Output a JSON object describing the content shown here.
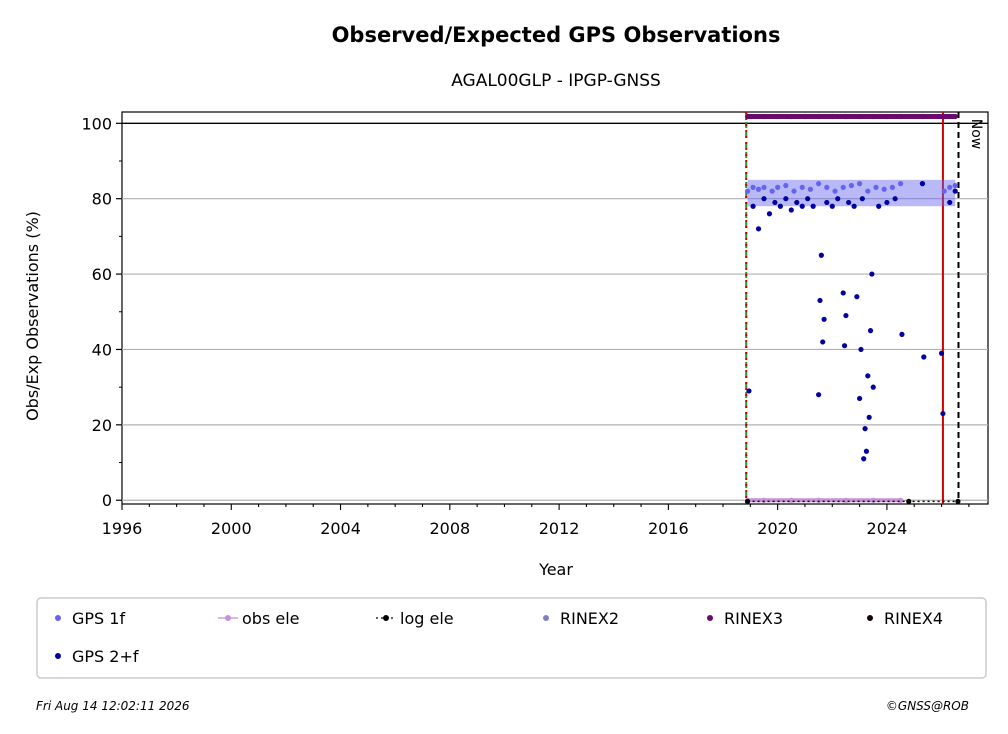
{
  "chart_data": {
    "type": "scatter",
    "title": "Observed/Expected GPS Observations",
    "subtitle": "AGAL00GLP - IPGP-GNSS",
    "xlabel": "Year",
    "ylabel": "Obs/Exp Observations (%)",
    "xlim": [
      1996,
      2027.7
    ],
    "ylim": [
      -1,
      103
    ],
    "x_ticks": [
      1996,
      2000,
      2004,
      2008,
      2012,
      2016,
      2020,
      2024
    ],
    "y_ticks": [
      0,
      20,
      40,
      60,
      80,
      100
    ],
    "grid": "horizontal",
    "legend_placement": "bottom",
    "now_label": "Now",
    "vlines": [
      {
        "name": "station-start",
        "x": 2018.85,
        "color": "#2e8b2e",
        "style": "dashed"
      },
      {
        "name": "start-red",
        "x": 2018.85,
        "color": "#cc0000",
        "style": "dotted"
      },
      {
        "name": "red-event",
        "x": 2026.05,
        "color": "#cc0000",
        "style": "solid"
      },
      {
        "name": "now",
        "x": 2026.62,
        "color": "#000000",
        "style": "dashed"
      }
    ],
    "series": [
      {
        "name": "GPS 1f",
        "color": "#6464f0",
        "x": [
          2018.9,
          2019.1,
          2019.3,
          2019.5,
          2019.8,
          2020.0,
          2020.3,
          2020.6,
          2020.9,
          2021.2,
          2021.5,
          2021.8,
          2022.1,
          2022.4,
          2022.7,
          2023.0,
          2023.3,
          2023.6,
          2023.9,
          2024.2,
          2024.5,
          2025.3,
          2026.1,
          2026.3,
          2026.5
        ],
        "values": [
          82,
          83,
          82.5,
          83,
          82,
          83,
          83.5,
          82,
          83,
          82.5,
          84,
          83,
          82,
          83,
          83.5,
          84,
          82,
          83,
          82.5,
          83,
          84,
          84,
          82,
          83,
          83.5
        ]
      },
      {
        "name": "obs ele",
        "color": "#c890d8",
        "x": [
          2018.9,
          2019.5,
          2020.5,
          2021.5,
          2022.5,
          2023.5,
          2024.5
        ],
        "values": [
          0,
          0,
          0,
          0,
          0,
          0,
          0
        ]
      },
      {
        "name": "log ele",
        "color": "#000000",
        "x": [
          2018.9,
          2024.8,
          2026.6
        ],
        "values": [
          -0.3,
          -0.3,
          -0.3
        ]
      },
      {
        "name": "RINEX2",
        "color": "#8080c0",
        "x": [],
        "values": []
      },
      {
        "name": "RINEX3",
        "color": "#6a0a6a",
        "x": [
          2018.9,
          2019.5,
          2020.0,
          2020.5,
          2021.0,
          2021.5,
          2022.0,
          2022.5,
          2023.0,
          2023.5,
          2024.0,
          2024.5,
          2025.3,
          2026.1,
          2026.5
        ],
        "values": [
          101.8,
          101.8,
          101.8,
          101.8,
          101.8,
          101.8,
          101.8,
          101.8,
          101.8,
          101.8,
          101.8,
          101.8,
          101.8,
          101.8,
          101.8
        ]
      },
      {
        "name": "RINEX4",
        "color": "#1a0010",
        "x": [],
        "values": []
      },
      {
        "name": "GPS 2+f",
        "color": "#0000a0",
        "x": [
          2018.95,
          2019.1,
          2019.3,
          2019.5,
          2019.7,
          2019.9,
          2020.1,
          2020.3,
          2020.5,
          2020.7,
          2020.9,
          2021.1,
          2021.3,
          2021.5,
          2021.55,
          2021.6,
          2021.65,
          2021.7,
          2021.8,
          2022.0,
          2022.2,
          2022.4,
          2022.45,
          2022.5,
          2022.6,
          2022.8,
          2022.9,
          2023.0,
          2023.05,
          2023.1,
          2023.15,
          2023.2,
          2023.25,
          2023.3,
          2023.35,
          2023.4,
          2023.45,
          2023.5,
          2023.7,
          2024.0,
          2024.3,
          2024.55,
          2025.3,
          2025.35,
          2026.0,
          2026.05,
          2026.3,
          2026.5
        ],
        "values": [
          29,
          78,
          72,
          80,
          76,
          79,
          78,
          80,
          77,
          79,
          78,
          80,
          78,
          28,
          53,
          65,
          42,
          48,
          79,
          78,
          80,
          55,
          41,
          49,
          79,
          78,
          54,
          27,
          40,
          80,
          11,
          19,
          13,
          33,
          22,
          45,
          60,
          30,
          78,
          79,
          80,
          44,
          84,
          38,
          39,
          23,
          79,
          82
        ]
      }
    ],
    "legend": [
      "GPS 1f",
      "obs ele",
      "log ele",
      "RINEX2",
      "RINEX3",
      "RINEX4",
      "GPS 2+f"
    ],
    "footer_left": "Fri Aug 14 12:02:11 2026",
    "footer_right": "©GNSS@ROB"
  }
}
